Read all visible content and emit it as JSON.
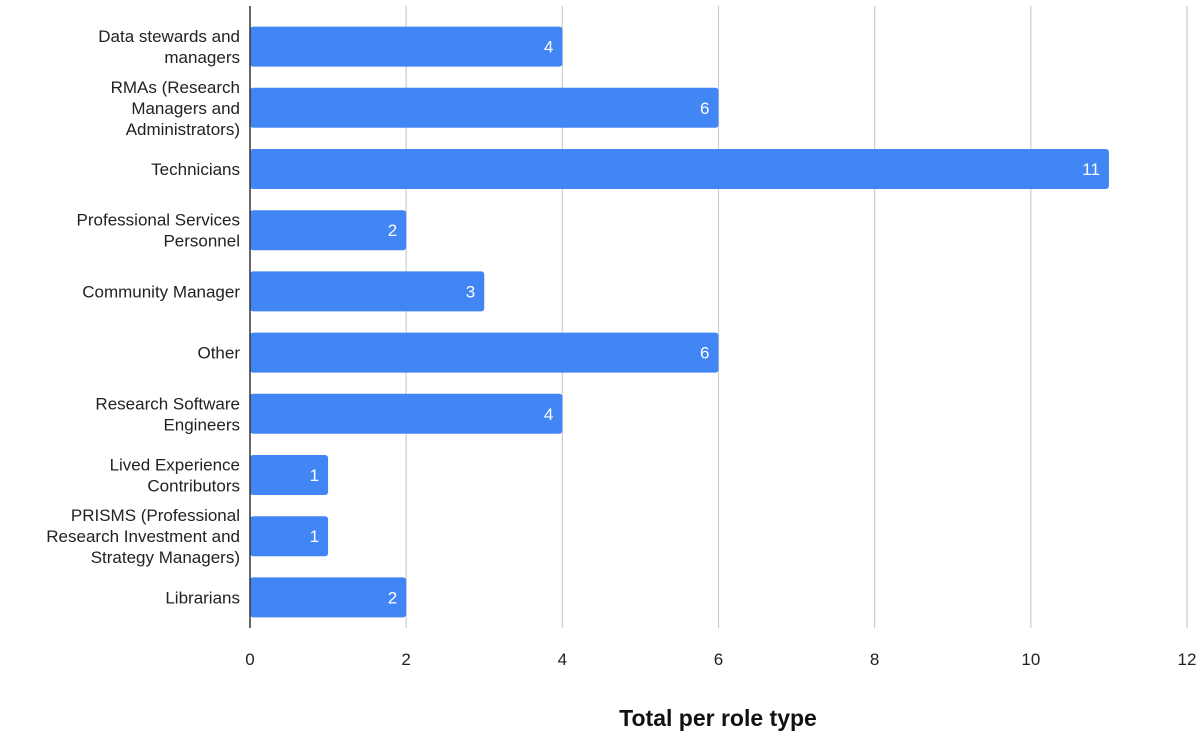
{
  "chart_data": {
    "type": "bar",
    "orientation": "horizontal",
    "title": "",
    "xlabel": "Total per role type",
    "ylabel": "",
    "xlim": [
      0,
      12
    ],
    "x_ticks": [
      0,
      2,
      4,
      6,
      8,
      10,
      12
    ],
    "grid": true,
    "legend": "none",
    "bar_color": "#4285f4",
    "categories": [
      [
        "Data stewards and",
        "managers"
      ],
      [
        "RMAs (Research",
        "Managers and",
        "Administrators)"
      ],
      [
        "Technicians"
      ],
      [
        "Professional Services",
        "Personnel"
      ],
      [
        "Community Manager"
      ],
      [
        "Other"
      ],
      [
        "Research Software",
        "Engineers"
      ],
      [
        "Lived Experience",
        "Contributors"
      ],
      [
        "PRISMS (Professional",
        "Research Investment and",
        "Strategy Managers)"
      ],
      [
        "Librarians"
      ]
    ],
    "values": [
      4,
      6,
      11,
      2,
      3,
      6,
      4,
      1,
      1,
      2
    ],
    "data_labels": [
      "4",
      "6",
      "11",
      "2",
      "3",
      "6",
      "4",
      "1",
      "1",
      "2"
    ]
  }
}
